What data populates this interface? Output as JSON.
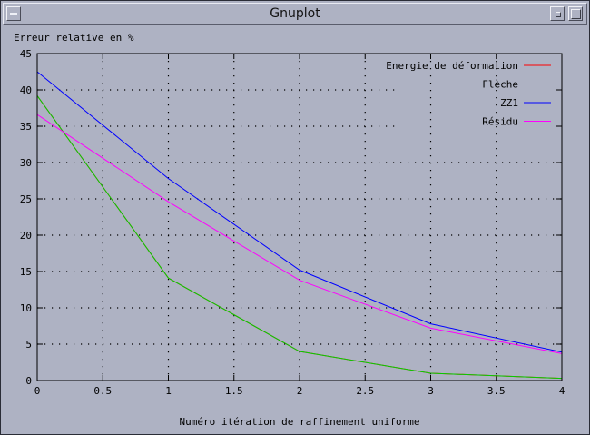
{
  "window": {
    "title": "Gnuplot"
  },
  "chart_data": {
    "type": "line",
    "xlabel": "Numéro itération de raffinement uniforme",
    "ylabel": "Erreur relative en %",
    "xlim": [
      0,
      4
    ],
    "ylim": [
      0,
      45
    ],
    "xticks": [
      "0",
      "0.5",
      "1",
      "1.5",
      "2",
      "2.5",
      "3",
      "3.5",
      "4"
    ],
    "yticks": [
      "0",
      "5",
      "10",
      "15",
      "20",
      "25",
      "30",
      "35",
      "40",
      "45"
    ],
    "grid": true,
    "legend_position": "top-right",
    "series": [
      {
        "name": "Energie de déformation",
        "color": "#ff0000",
        "x": [
          0,
          1,
          2,
          3,
          4
        ],
        "y": [
          39.2,
          14.1,
          4.0,
          1.0,
          0.3
        ]
      },
      {
        "name": "Flèche",
        "color": "#00d000",
        "x": [
          0,
          1,
          2,
          3,
          4
        ],
        "y": [
          39.2,
          14.1,
          4.0,
          1.0,
          0.3
        ]
      },
      {
        "name": "ZZ1",
        "color": "#0000ff",
        "x": [
          0,
          1,
          2,
          3,
          4
        ],
        "y": [
          42.5,
          27.8,
          15.2,
          7.8,
          3.9
        ]
      },
      {
        "name": "Résidu",
        "color": "#ff00ff",
        "x": [
          0,
          1,
          2,
          3,
          4
        ],
        "y": [
          36.6,
          24.6,
          13.8,
          7.2,
          3.7
        ]
      }
    ]
  }
}
